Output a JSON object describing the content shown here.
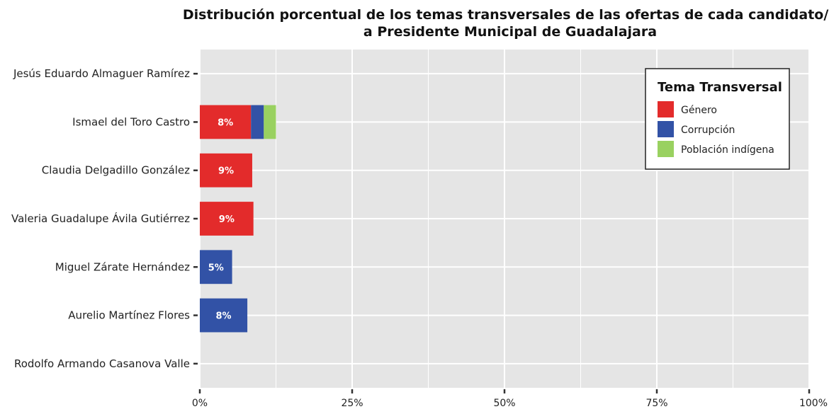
{
  "chart_data": {
    "type": "bar",
    "orientation": "horizontal",
    "stacked": true,
    "title_lines": [
      "Distribución porcentual de los temas transversales de las ofertas de cada candidato/a",
      "a Presidente Municipal de Guadalajara"
    ],
    "categories": [
      "Jesús Eduardo Almaguer Ramírez",
      "Ismael del Toro Castro",
      "Claudia Delgadillo González",
      "Valeria Guadalupe Ávila Gutiérrez",
      "Miguel Zárate Hernández",
      "Aurelio Martínez Flores",
      "Rodolfo Armando Casanova Valle"
    ],
    "series": [
      {
        "name": "Género",
        "color": "#e32b2b",
        "values": [
          0,
          8.4,
          8.6,
          8.8,
          0,
          0,
          0
        ]
      },
      {
        "name": "Corrupción",
        "color": "#3252a6",
        "values": [
          0,
          2.1,
          0,
          0,
          5.3,
          7.8,
          0
        ]
      },
      {
        "name": "Población indígena",
        "color": "#99d160",
        "values": [
          0,
          2.0,
          0,
          0,
          0,
          0,
          0
        ]
      }
    ],
    "data_labels": [
      {
        "category": "Ismael del Toro Castro",
        "series": "Género",
        "text": "8%"
      },
      {
        "category": "Claudia Delgadillo González",
        "series": "Género",
        "text": "9%"
      },
      {
        "category": "Valeria Guadalupe Ávila Gutiérrez",
        "series": "Género",
        "text": "9%"
      },
      {
        "category": "Miguel Zárate Hernández",
        "series": "Corrupción",
        "text": "5%"
      },
      {
        "category": "Aurelio Martínez Flores",
        "series": "Corrupción",
        "text": "8%"
      }
    ],
    "xlim": [
      0,
      100
    ],
    "x_ticks": [
      0,
      25,
      50,
      75,
      100
    ],
    "x_tick_labels": [
      "0%",
      "25%",
      "50%",
      "75%",
      "100%"
    ],
    "legend_title": "Tema Transversal",
    "legend_position": "top-right",
    "grid": true,
    "panel_color": "#e5e5e5",
    "grid_color": "#ffffff"
  }
}
